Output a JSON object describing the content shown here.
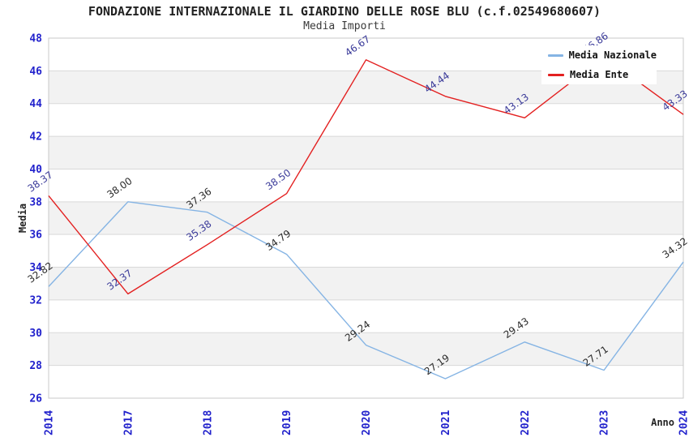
{
  "title": "FONDAZIONE INTERNAZIONALE IL GIARDINO DELLE ROSE BLU (c.f.02549680607)",
  "subtitle": "Media Importi",
  "colors": {
    "tick_label": "#2222cc",
    "axis_title": "#222222",
    "plot_border": "#c8c8c8",
    "grid_line": "#d9d9d9",
    "band_even": "#ffffff",
    "band_odd": "#f2f2f2",
    "legend_bg": "#ffffff",
    "legend_text": "#111111"
  },
  "chart_data": {
    "type": "line",
    "title": "FONDAZIONE INTERNAZIONALE IL GIARDINO DELLE ROSE BLU (c.f.02549680607)",
    "subtitle": "Media Importi",
    "xlabel": "Anno",
    "ylabel": "Media",
    "categories": [
      "2014",
      "2017",
      "2018",
      "2019",
      "2020",
      "2021",
      "2022",
      "2023",
      "2024"
    ],
    "series": [
      {
        "name": "Media Nazionale",
        "color": "#85b4e4",
        "label_color": "#2b2b2b",
        "values": [
          32.82,
          38.0,
          37.36,
          34.79,
          29.24,
          27.19,
          29.43,
          27.71,
          34.32
        ]
      },
      {
        "name": "Media Ente",
        "color": "#e32020",
        "label_color": "#3a3a99",
        "values": [
          38.37,
          32.37,
          35.38,
          38.5,
          46.67,
          44.44,
          43.13,
          46.86,
          43.33
        ]
      }
    ],
    "ylim": [
      26,
      48
    ],
    "ytick_step": 2,
    "grid": true,
    "background_bands": true,
    "legend_position": "top-right",
    "value_labels": true,
    "value_label_decimals": 2,
    "value_label_rotation_deg": -35
  }
}
